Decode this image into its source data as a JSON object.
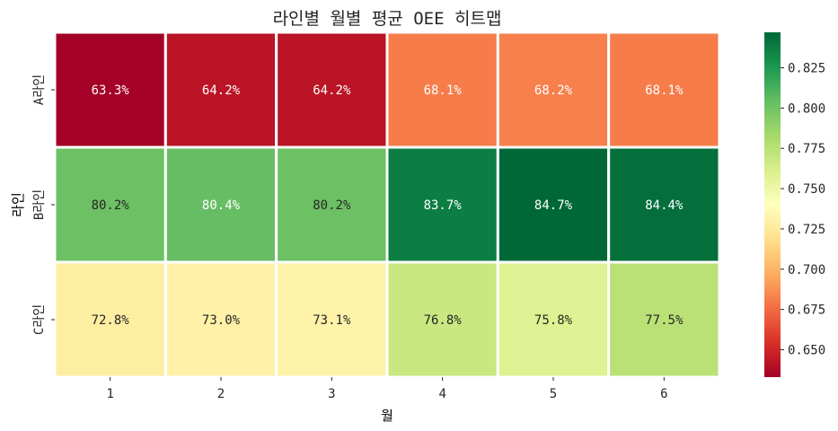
{
  "chart_data": {
    "type": "heatmap",
    "title": "라인별 월별 평균 OEE 히트맵",
    "xlabel": "월",
    "ylabel": "라인",
    "x_categories": [
      "1",
      "2",
      "3",
      "4",
      "5",
      "6"
    ],
    "y_categories": [
      "A라인",
      "B라인",
      "C라인"
    ],
    "values": [
      [
        0.633,
        0.642,
        0.642,
        0.681,
        0.682,
        0.681
      ],
      [
        0.802,
        0.804,
        0.802,
        0.837,
        0.847,
        0.844
      ],
      [
        0.728,
        0.73,
        0.731,
        0.768,
        0.758,
        0.775
      ]
    ],
    "labels": [
      [
        "63.3%",
        "64.2%",
        "64.2%",
        "68.1%",
        "68.2%",
        "68.1%"
      ],
      [
        "80.2%",
        "80.4%",
        "80.2%",
        "83.7%",
        "84.7%",
        "84.4%"
      ],
      [
        "72.8%",
        "73.0%",
        "73.1%",
        "76.8%",
        "75.8%",
        "77.5%"
      ]
    ],
    "colormap": "RdYlGn",
    "colormap_stops": [
      "#a50026",
      "#d73027",
      "#f46d43",
      "#fdae61",
      "#fee08b",
      "#ffffbf",
      "#d9ef8b",
      "#a6d96a",
      "#66bd63",
      "#1a9850",
      "#006837"
    ],
    "vmin": 0.633,
    "vmax": 0.847,
    "colorbar_ticks": [
      "0.650",
      "0.675",
      "0.700",
      "0.725",
      "0.750",
      "0.775",
      "0.800",
      "0.825"
    ]
  }
}
